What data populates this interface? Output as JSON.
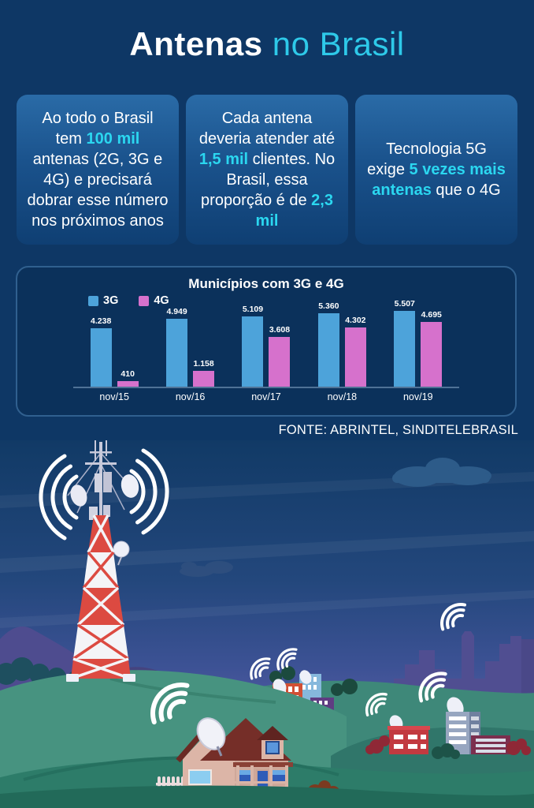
{
  "title": {
    "bold": "Antenas",
    "light": " no Brasil"
  },
  "cards": [
    {
      "segments": [
        {
          "text": "Ao todo o Brasil tem ",
          "highlight": false
        },
        {
          "text": "100 mil",
          "highlight": true
        },
        {
          "text": " antenas (2G, 3G e 4G) e precisará dobrar esse número nos próximos anos",
          "highlight": false
        }
      ]
    },
    {
      "segments": [
        {
          "text": "Cada antena deveria atender até ",
          "highlight": false
        },
        {
          "text": "1,5 mil",
          "highlight": true
        },
        {
          "text": " clientes. No Brasil, essa proporção é de ",
          "highlight": false
        },
        {
          "text": "2,3 mil",
          "highlight": true
        }
      ]
    },
    {
      "segments": [
        {
          "text": "Tecnologia 5G exige ",
          "highlight": false
        },
        {
          "text": "5 vezes mais antenas",
          "highlight": true
        },
        {
          "text": " que o 4G",
          "highlight": false
        }
      ]
    }
  ],
  "chart_data": {
    "type": "bar",
    "title": "Municípios com 3G e 4G",
    "categories": [
      "nov/15",
      "nov/16",
      "nov/17",
      "nov/18",
      "nov/19"
    ],
    "series": [
      {
        "name": "3G",
        "color": "#4da3da",
        "values": [
          4238,
          4949,
          5109,
          5360,
          5507
        ],
        "labels": [
          "4.238",
          "4.949",
          "5.109",
          "5.360",
          "5.507"
        ]
      },
      {
        "name": "4G",
        "color": "#d671cc",
        "values": [
          410,
          1158,
          3608,
          4302,
          4695
        ],
        "labels": [
          "410",
          "1.158",
          "3.608",
          "4.302",
          "4.695"
        ]
      }
    ],
    "ylim": [
      0,
      5600
    ],
    "xlabel": "",
    "ylabel": "",
    "grid": false,
    "legend_position": "top-left"
  },
  "source": "FONTE: ABRINTEL, SINDITELEBRASIL",
  "colors": {
    "background": "#0e3765",
    "accent_cyan": "#2bd7f0",
    "title_cyan": "#2ec9e9",
    "bar_3g": "#4da3da",
    "bar_4g": "#d671cc",
    "card_gradient_top": "#2a6ba7",
    "card_gradient_bottom": "#0f3f73",
    "chart_border": "#30608f",
    "tower_red": "#dc4a41",
    "hill_green": "#479380",
    "sky_purple": "#6f68b4"
  },
  "illustration": {
    "elements": [
      "communication-tower",
      "signal-waves",
      "satellite-dish",
      "house",
      "city-buildings",
      "city-skyline",
      "hills",
      "clouds",
      "picket-fence",
      "bushes"
    ]
  }
}
